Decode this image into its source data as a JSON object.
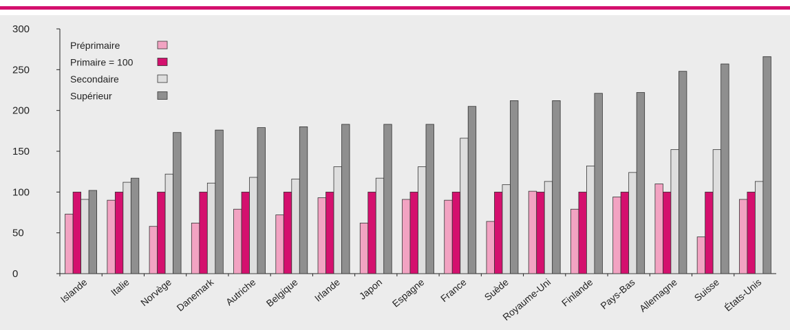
{
  "colors": {
    "accent": "#d4106e",
    "panel": "#ececec",
    "series": [
      "#f2a3c2",
      "#d4106e",
      "#dedede",
      "#8f8f8f"
    ]
  },
  "chart_data": {
    "type": "bar",
    "title": "",
    "xlabel": "",
    "ylabel": "",
    "ylim": [
      0,
      300
    ],
    "yticks": [
      0,
      50,
      100,
      150,
      200,
      250,
      300
    ],
    "grid": false,
    "legend": "top-left",
    "categories": [
      "Islande",
      "Italie",
      "Norvège",
      "Danemark",
      "Autriche",
      "Belgique",
      "Irlande",
      "Japon",
      "Espagne",
      "France",
      "Suède",
      "Royaume-Uni",
      "Finlande",
      "Pays-Bas",
      "Allemagne",
      "Suisse",
      "États-Unis"
    ],
    "series": [
      {
        "name": "Préprimaire",
        "values": [
          73,
          90,
          58,
          62,
          79,
          72,
          93,
          62,
          91,
          90,
          64,
          101,
          79,
          94,
          110,
          45,
          91
        ]
      },
      {
        "name": "Primaire = 100",
        "values": [
          100,
          100,
          100,
          100,
          100,
          100,
          100,
          100,
          100,
          100,
          100,
          100,
          100,
          100,
          100,
          100,
          100
        ]
      },
      {
        "name": "Secondaire",
        "values": [
          91,
          112,
          122,
          111,
          118,
          116,
          131,
          117,
          131,
          166,
          109,
          113,
          132,
          124,
          152,
          152,
          113
        ]
      },
      {
        "name": "Supérieur",
        "values": [
          102,
          117,
          173,
          176,
          179,
          180,
          183,
          183,
          183,
          205,
          212,
          212,
          221,
          222,
          248,
          257,
          266
        ]
      }
    ]
  }
}
